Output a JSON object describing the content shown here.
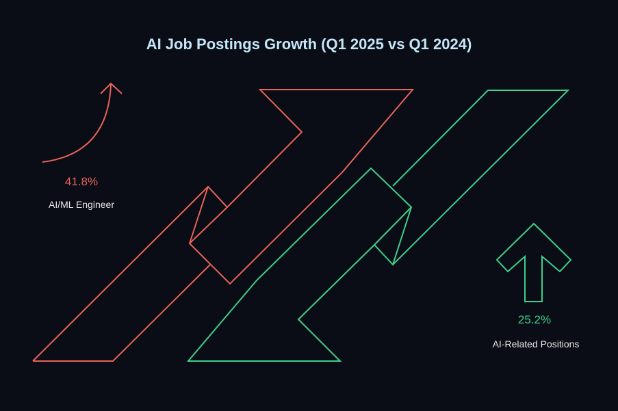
{
  "title": "AI Job Postings Growth (Q1 2025 vs Q1 2024)",
  "colors": {
    "background": "#0a0d15",
    "title": "#c4e6f8",
    "red": "#e8635b",
    "green": "#3ed08c"
  },
  "metrics": [
    {
      "value": "41.8%",
      "label": "AI/ML Engineer",
      "color": "#e8635b",
      "icon": "curved-arrow-up-icon"
    },
    {
      "value": "25.2%",
      "label": "AI-Related Positions",
      "color": "#3ed08c",
      "icon": "block-arrow-up-icon"
    }
  ]
}
